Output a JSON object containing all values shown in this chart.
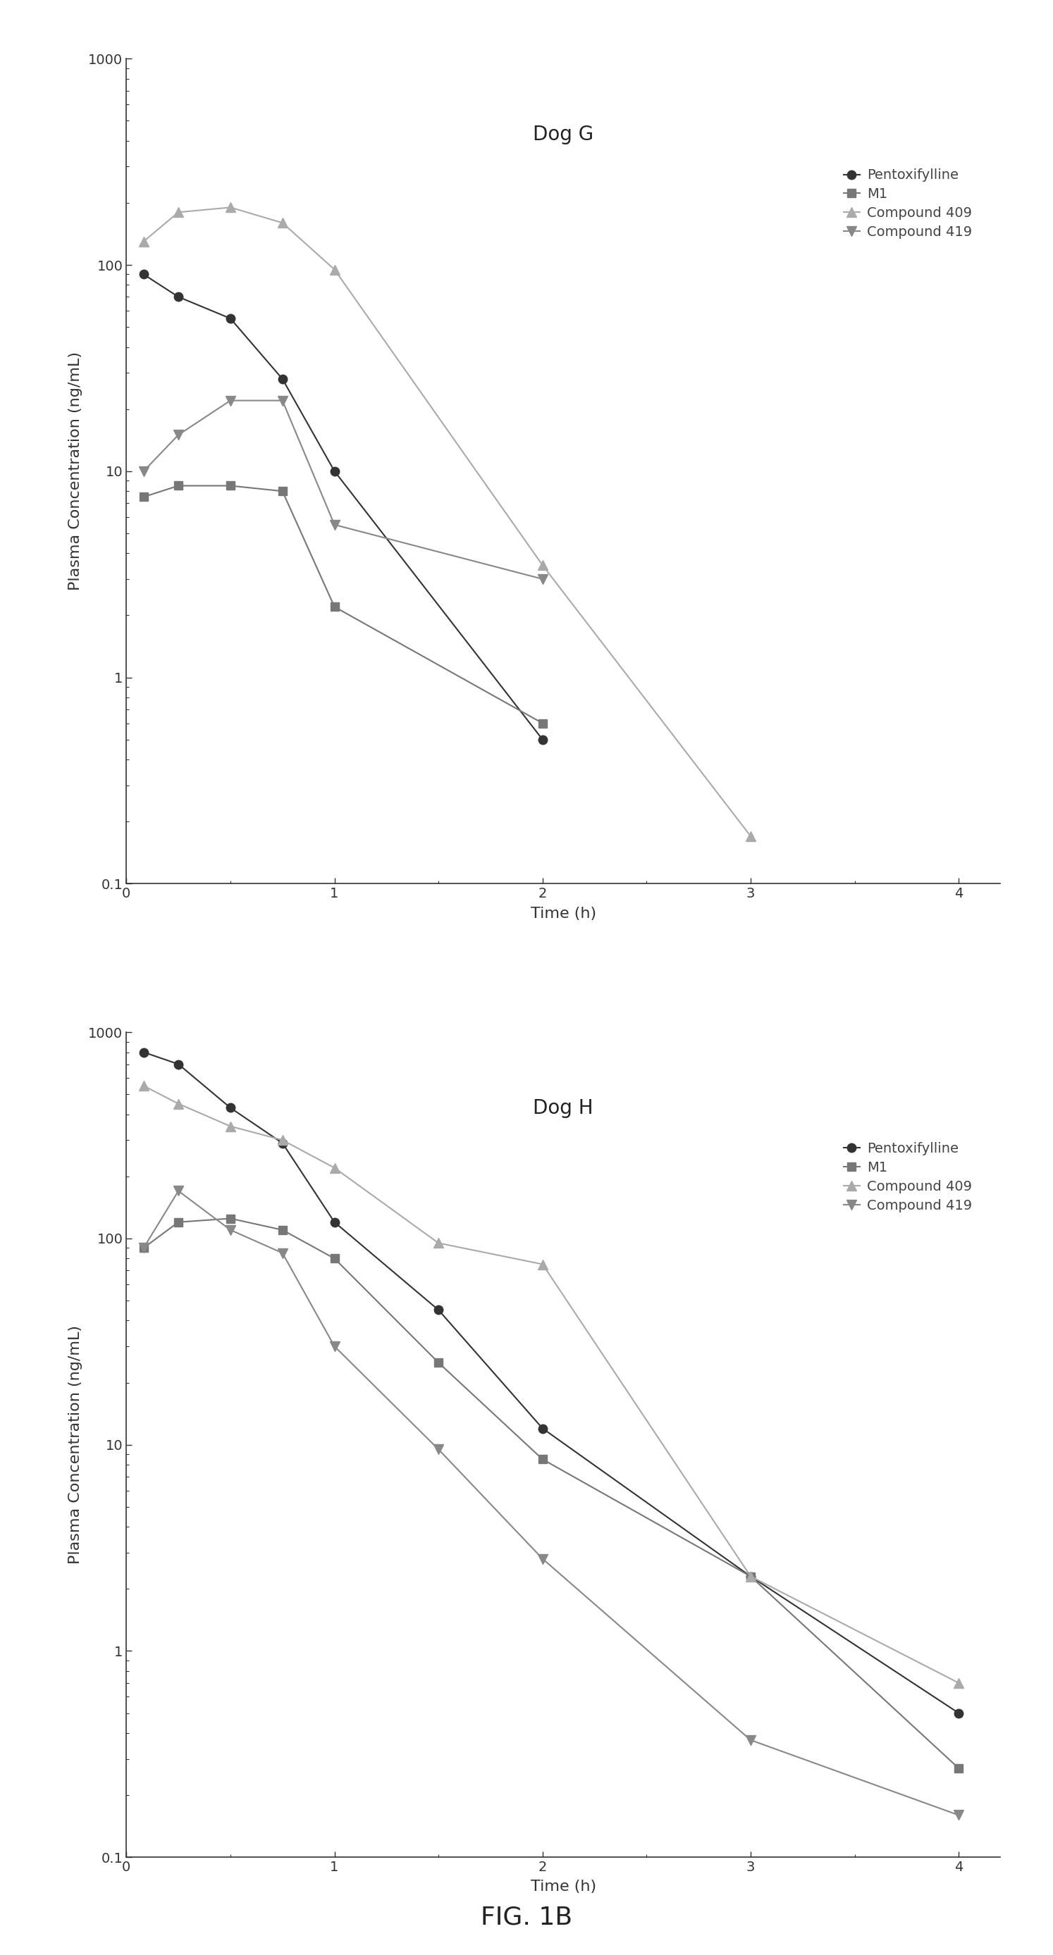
{
  "dog_g": {
    "title": "Dog G",
    "series": [
      {
        "label": "Pentoxifylline",
        "x": [
          0.083,
          0.25,
          0.5,
          0.75,
          1.0,
          2.0
        ],
        "y": [
          90,
          70,
          55,
          28,
          10,
          0.5
        ],
        "color": "#333333",
        "marker": "o",
        "markersize": 9,
        "linewidth": 1.5
      },
      {
        "label": "M1",
        "x": [
          0.083,
          0.25,
          0.5,
          0.75,
          1.0,
          2.0
        ],
        "y": [
          7.5,
          8.5,
          8.5,
          8.0,
          2.2,
          0.6
        ],
        "color": "#777777",
        "marker": "s",
        "markersize": 8,
        "linewidth": 1.5
      },
      {
        "label": "Compound 409",
        "x": [
          0.083,
          0.25,
          0.5,
          0.75,
          1.0,
          2.0,
          3.0
        ],
        "y": [
          130,
          180,
          190,
          160,
          95,
          3.5,
          0.17
        ],
        "color": "#aaaaaa",
        "marker": "^",
        "markersize": 10,
        "linewidth": 1.5
      },
      {
        "label": "Compound 419",
        "x": [
          0.083,
          0.25,
          0.5,
          0.75,
          1.0,
          2.0
        ],
        "y": [
          10,
          15,
          22,
          22,
          5.5,
          3.0
        ],
        "color": "#888888",
        "marker": "v",
        "markersize": 10,
        "linewidth": 1.5
      }
    ]
  },
  "dog_h": {
    "title": "Dog H",
    "series": [
      {
        "label": "Pentoxifylline",
        "x": [
          0.083,
          0.25,
          0.5,
          0.75,
          1.0,
          1.5,
          2.0,
          3.0,
          4.0
        ],
        "y": [
          800,
          700,
          430,
          290,
          120,
          45,
          12,
          2.3,
          0.5
        ],
        "color": "#333333",
        "marker": "o",
        "markersize": 9,
        "linewidth": 1.5
      },
      {
        "label": "M1",
        "x": [
          0.083,
          0.25,
          0.5,
          0.75,
          1.0,
          1.5,
          2.0,
          3.0,
          4.0
        ],
        "y": [
          90,
          120,
          125,
          110,
          80,
          25,
          8.5,
          2.3,
          0.27
        ],
        "color": "#777777",
        "marker": "s",
        "markersize": 8,
        "linewidth": 1.5
      },
      {
        "label": "Compound 409",
        "x": [
          0.083,
          0.25,
          0.5,
          0.75,
          1.0,
          1.5,
          2.0,
          3.0,
          4.0
        ],
        "y": [
          550,
          450,
          350,
          300,
          220,
          95,
          75,
          2.3,
          0.7
        ],
        "color": "#aaaaaa",
        "marker": "^",
        "markersize": 10,
        "linewidth": 1.5
      },
      {
        "label": "Compound 419",
        "x": [
          0.083,
          0.25,
          0.5,
          0.75,
          1.0,
          1.5,
          2.0,
          3.0,
          4.0
        ],
        "y": [
          90,
          170,
          110,
          85,
          30,
          9.5,
          2.8,
          0.37,
          0.16
        ],
        "color": "#888888",
        "marker": "v",
        "markersize": 10,
        "linewidth": 1.5
      }
    ]
  },
  "fig_label": "FIG. 1B",
  "ylabel": "Plasma Concentration (ng/mL)",
  "xlabel": "Time (h)",
  "ylim": [
    0.1,
    1000
  ],
  "xlim": [
    0,
    4.2
  ],
  "xticks": [
    0,
    1,
    2,
    3,
    4
  ],
  "background_color": "#ffffff",
  "axes_facecolor": "#ffffff",
  "title_fontsize": 20,
  "label_fontsize": 16,
  "tick_fontsize": 14,
  "legend_fontsize": 14,
  "fig_label_fontsize": 26
}
